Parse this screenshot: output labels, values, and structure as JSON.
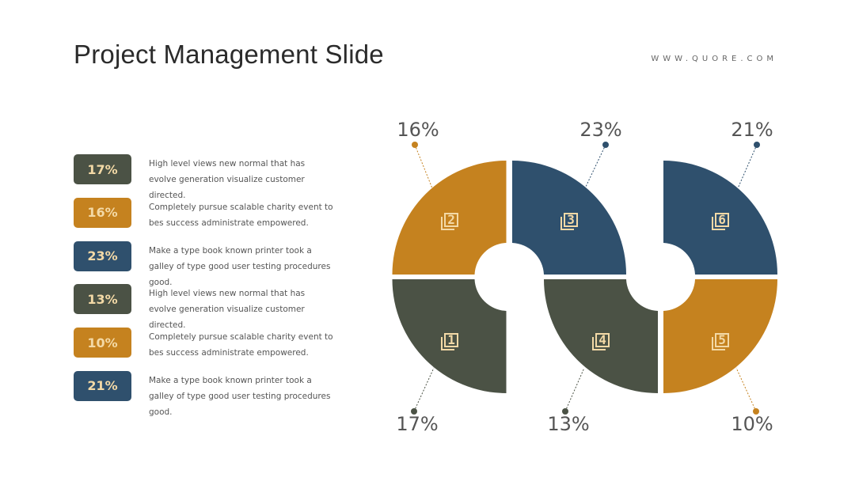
{
  "header": {
    "title": "Project Management Slide",
    "website": "WWW.QUORE.COM"
  },
  "colors": {
    "dark_green": "#4b5245",
    "gold": "#c5821f",
    "navy": "#2f506d",
    "icon": "#f3d9a6"
  },
  "legend": [
    {
      "value": "17%",
      "color": "dark_green",
      "text": "High level views new normal that has evolve generation visualize customer directed."
    },
    {
      "value": "16%",
      "color": "gold",
      "text": "Completely pursue scalable charity event to bes success administrate empowered."
    },
    {
      "value": "23%",
      "color": "navy",
      "text": "Make a type book known printer took a galley of type good user testing procedures good."
    },
    {
      "value": "13%",
      "color": "dark_green",
      "text": "High level views new normal that has evolve generation visualize customer directed."
    },
    {
      "value": "10%",
      "color": "gold",
      "text": "Completely pursue scalable charity event to bes success administrate empowered."
    },
    {
      "value": "21%",
      "color": "navy",
      "text": "Make a type book known printer took a galley of type good user testing procedures good."
    }
  ],
  "segments": [
    {
      "number": "1",
      "value": "17%",
      "color": "dark_green",
      "icon": "stacked-squares-icon"
    },
    {
      "number": "2",
      "value": "16%",
      "color": "gold",
      "icon": "stacked-squares-icon"
    },
    {
      "number": "3",
      "value": "23%",
      "color": "navy",
      "icon": "stacked-squares-icon"
    },
    {
      "number": "4",
      "value": "13%",
      "color": "dark_green",
      "icon": "stacked-squares-icon"
    },
    {
      "number": "5",
      "value": "10%",
      "color": "gold",
      "icon": "stacked-squares-icon"
    },
    {
      "number": "6",
      "value": "21%",
      "color": "navy",
      "icon": "stacked-squares-icon"
    }
  ]
}
